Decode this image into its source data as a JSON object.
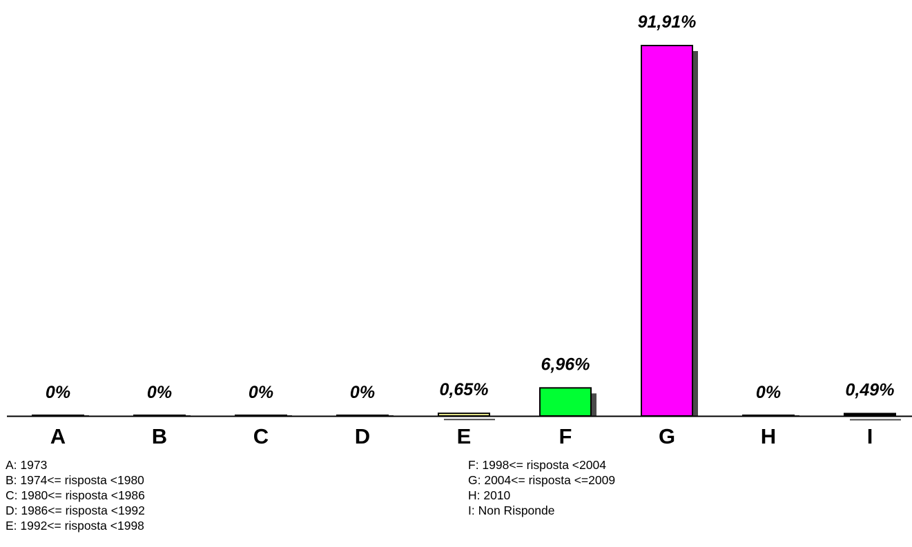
{
  "chart_data": {
    "type": "bar",
    "categories": [
      "A",
      "B",
      "C",
      "D",
      "E",
      "F",
      "G",
      "H",
      "I"
    ],
    "values": [
      0,
      0,
      0,
      0,
      0.65,
      6.96,
      91.91,
      0,
      0.49
    ],
    "value_labels": [
      "0%",
      "0%",
      "0%",
      "0%",
      "0,65%",
      "6,96%",
      "91,91%",
      "0%",
      "0,49%"
    ],
    "colors": [
      "#ffff99",
      "#ffff99",
      "#ffff99",
      "#ffff99",
      "#ffff99",
      "#00ff33",
      "#ff00ff",
      "#ffff99",
      "#000000"
    ],
    "title": "",
    "xlabel": "",
    "ylabel": "",
    "ylim": [
      0,
      91.91
    ],
    "grid": false,
    "legend": [
      "A: 1973",
      "B: 1974<= risposta <1980",
      "C: 1980<= risposta <1986",
      "D: 1986<= risposta <1992",
      "E: 1992<= risposta <1998",
      "F: 1998<= risposta <2004",
      "G: 2004<= risposta <=2009",
      "H: 2010",
      "I: Non Risponde"
    ]
  }
}
